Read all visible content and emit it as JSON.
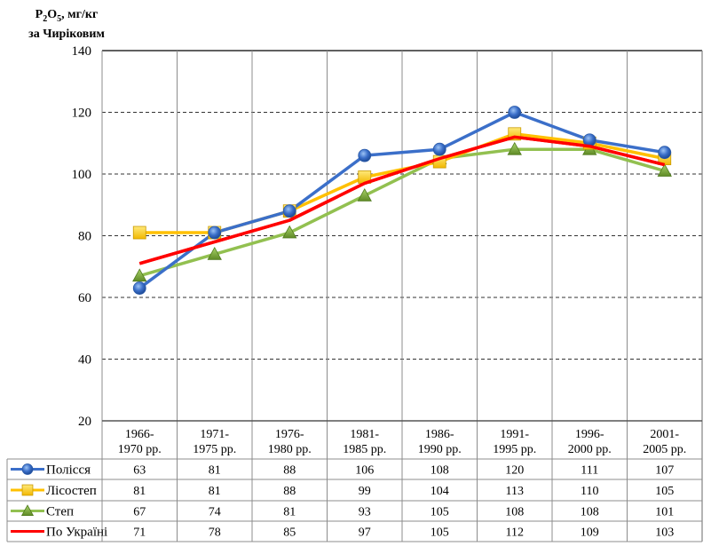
{
  "chart_data": {
    "type": "line",
    "title": "",
    "ylabel_line1_main": "P",
    "ylabel_sub1": "2",
    "ylabel_main2": "O",
    "ylabel_sub2": "5",
    "ylabel_rest": ", мг/кг",
    "ylabel_line2": "за Чиріковим",
    "ylim": [
      20,
      140
    ],
    "yticks": [
      20,
      40,
      60,
      80,
      100,
      120,
      140
    ],
    "ytick_labels": [
      "20",
      "40",
      "60",
      "80",
      "100",
      "120",
      "140"
    ],
    "categories": [
      [
        "1966-",
        "1970 рр."
      ],
      [
        "1971-",
        "1975 рр."
      ],
      [
        "1976-",
        "1980 рр."
      ],
      [
        "1981-",
        "1985 рр."
      ],
      [
        "1986-",
        "1990 рр."
      ],
      [
        "1991-",
        "1995 рр."
      ],
      [
        "1996-",
        "2000 рр."
      ],
      [
        "2001-",
        "2005 рр."
      ]
    ],
    "grid": "horizontal-dashed",
    "legend": "data-table",
    "series": [
      {
        "name": "Полісся",
        "color": "#3b6fc9",
        "marker": "circle",
        "values": [
          63,
          81,
          88,
          106,
          108,
          120,
          111,
          107
        ]
      },
      {
        "name": "Лісостеп",
        "color": "#ffc000",
        "marker": "square",
        "values": [
          81,
          81,
          88,
          99,
          104,
          113,
          110,
          105
        ]
      },
      {
        "name": "Степ",
        "color": "#92c050",
        "marker": "triangle",
        "values": [
          67,
          74,
          81,
          93,
          105,
          108,
          108,
          101
        ]
      },
      {
        "name": "По Україні",
        "color": "#ff0000",
        "marker": "none",
        "values": [
          71,
          78,
          85,
          97,
          105,
          112,
          109,
          103
        ]
      }
    ]
  }
}
